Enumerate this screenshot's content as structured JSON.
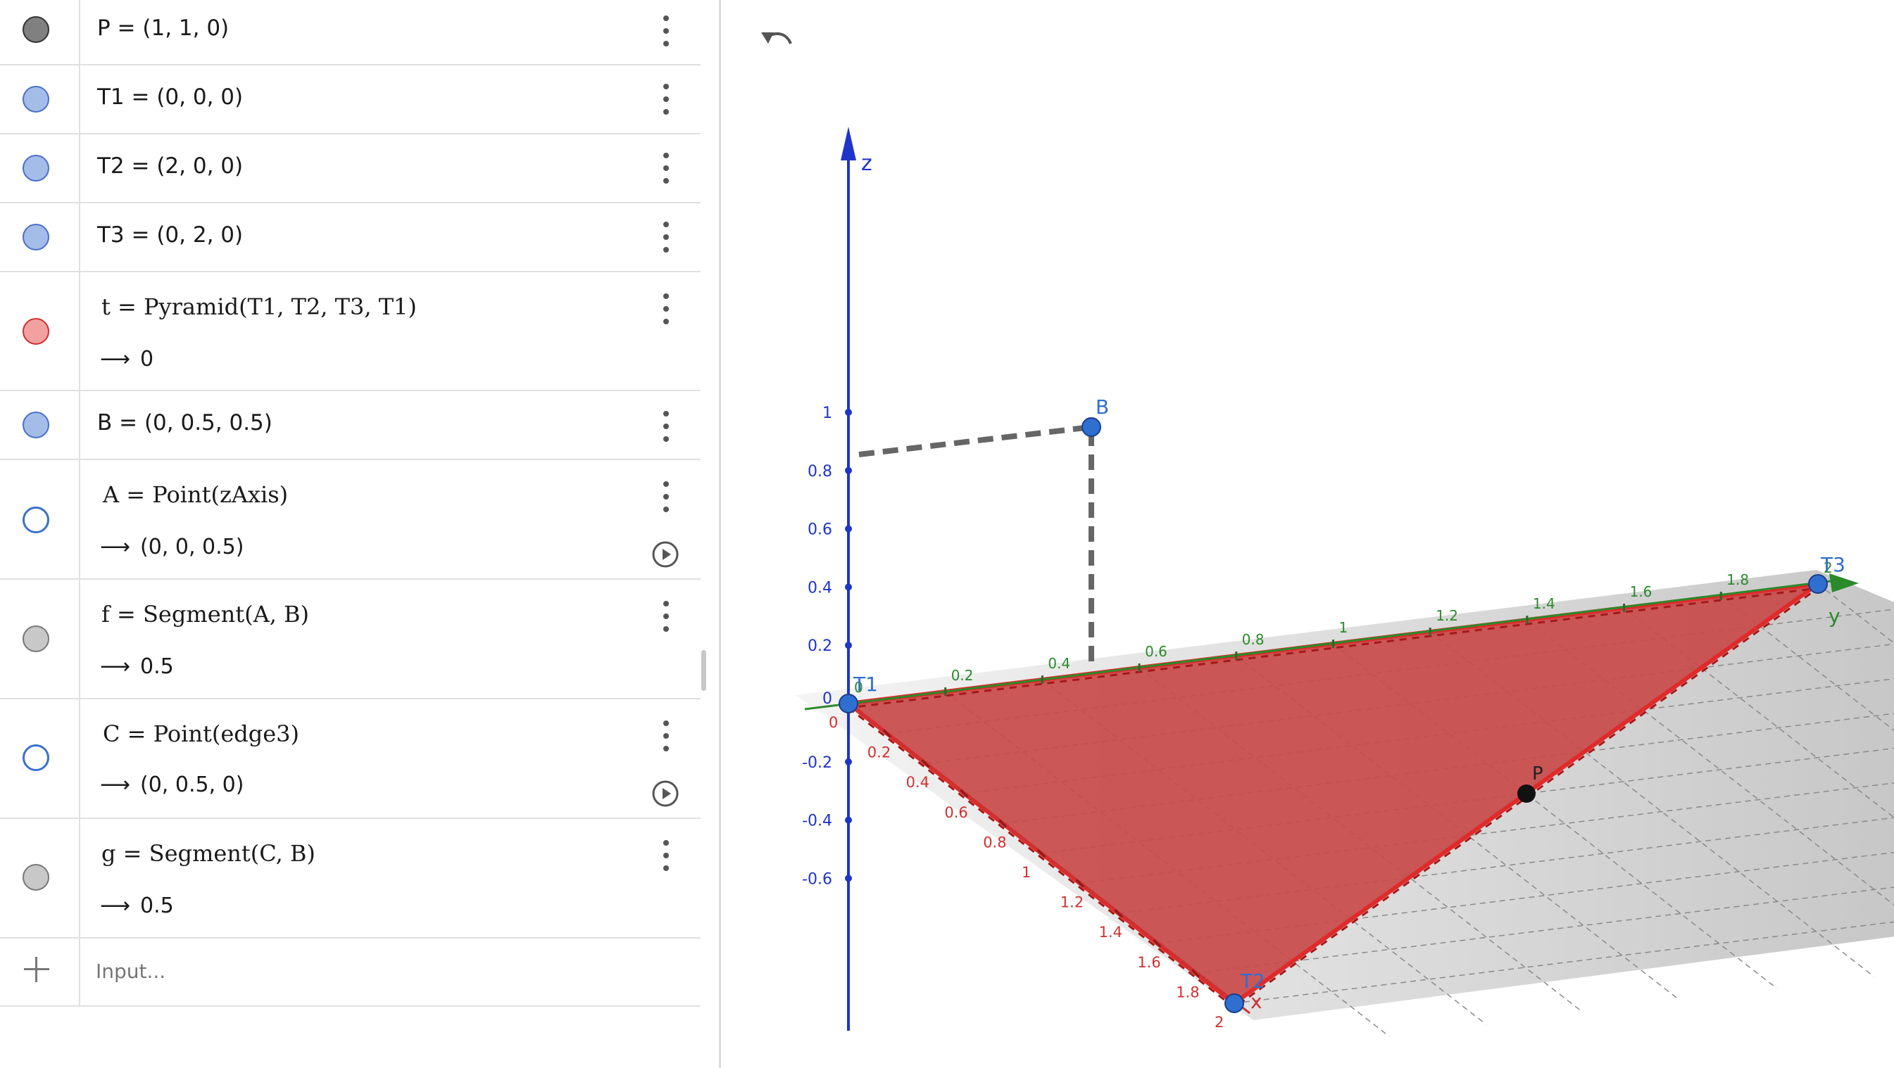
{
  "algebra": {
    "rows": [
      {
        "def": "P = (1, 1, 0)"
      },
      {
        "def": "T1 = (0, 0, 0)"
      },
      {
        "def": "T2 = (2, 0, 0)"
      },
      {
        "def": "T3 = (0, 2, 0)"
      },
      {
        "def": "t = Pyramid(T1, T2, T3, T1)",
        "value": "0"
      },
      {
        "def": "B = (0, 0.5, 0.5)"
      },
      {
        "def": "A = Point(zAxis)",
        "value": "(0, 0, 0.5)"
      },
      {
        "def": "f = Segment(A, B)",
        "value": "0.5"
      },
      {
        "def": "C = Point(edge3)",
        "value": "(0, 0.5, 0)"
      },
      {
        "def": "g = Segment(C, B)",
        "value": "0.5"
      }
    ],
    "arrow": "⟶",
    "input_placeholder": "Input..."
  },
  "colors": {
    "point_P": "#808080",
    "point_blue": "#a4bce8",
    "pyramid": "#f2a0a0",
    "segment": "#c8c8c8",
    "triangle_fill": "#c84a4a",
    "axis_blue": "#1f35c8",
    "axis_green": "#2a8a2a",
    "axis_red": "#d03030"
  },
  "graphics": {
    "icons": [
      "undo-icon"
    ],
    "z_axis": {
      "label": "z",
      "ticks": [
        "1",
        "0.8",
        "0.6",
        "0.4",
        "0.2",
        "-0.2",
        "-0.4",
        "-0.6"
      ],
      "origin_label": "0"
    },
    "y_axis": {
      "label": "y",
      "ticks": [
        "0",
        "0.2",
        "0.4",
        "0.6",
        "0.8",
        "1",
        "1.2",
        "1.4",
        "1.6",
        "1.8",
        "2"
      ]
    },
    "x_axis": {
      "label": "x",
      "ticks": [
        "0",
        "0.2",
        "0.4",
        "0.6",
        "0.8",
        "1",
        "1.2",
        "1.4",
        "1.6",
        "1.8",
        "2"
      ]
    },
    "points": {
      "T1": "T1",
      "T2": "T2",
      "T3": "T3",
      "B": "B",
      "P": "P"
    }
  }
}
